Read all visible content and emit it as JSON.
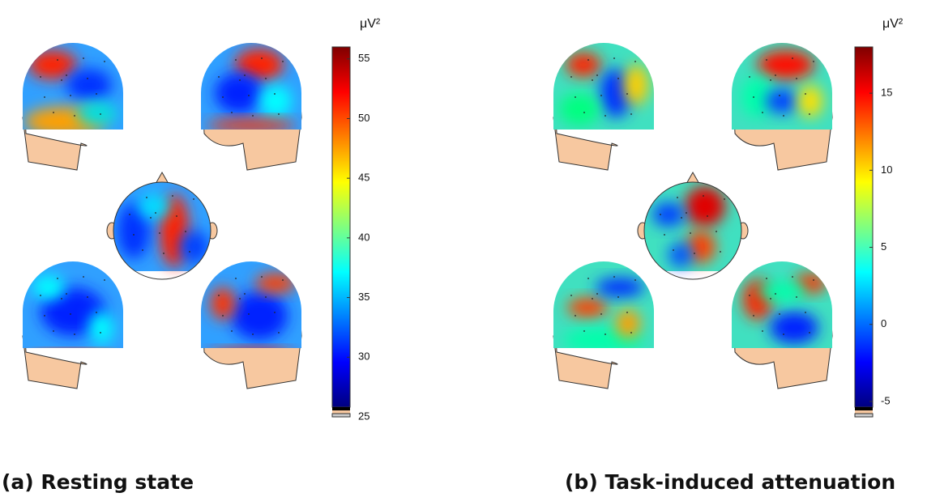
{
  "panels": [
    {
      "caption": "(a) Resting state",
      "unit": "μV²",
      "clim": [
        25,
        56
      ],
      "ticks": [
        25,
        30,
        35,
        40,
        45,
        50,
        55
      ]
    },
    {
      "caption": "(b) Task-induced attenuation",
      "unit": "μV²",
      "clim": [
        -6,
        18
      ],
      "ticks": [
        -5,
        0,
        5,
        10,
        15
      ]
    }
  ]
}
